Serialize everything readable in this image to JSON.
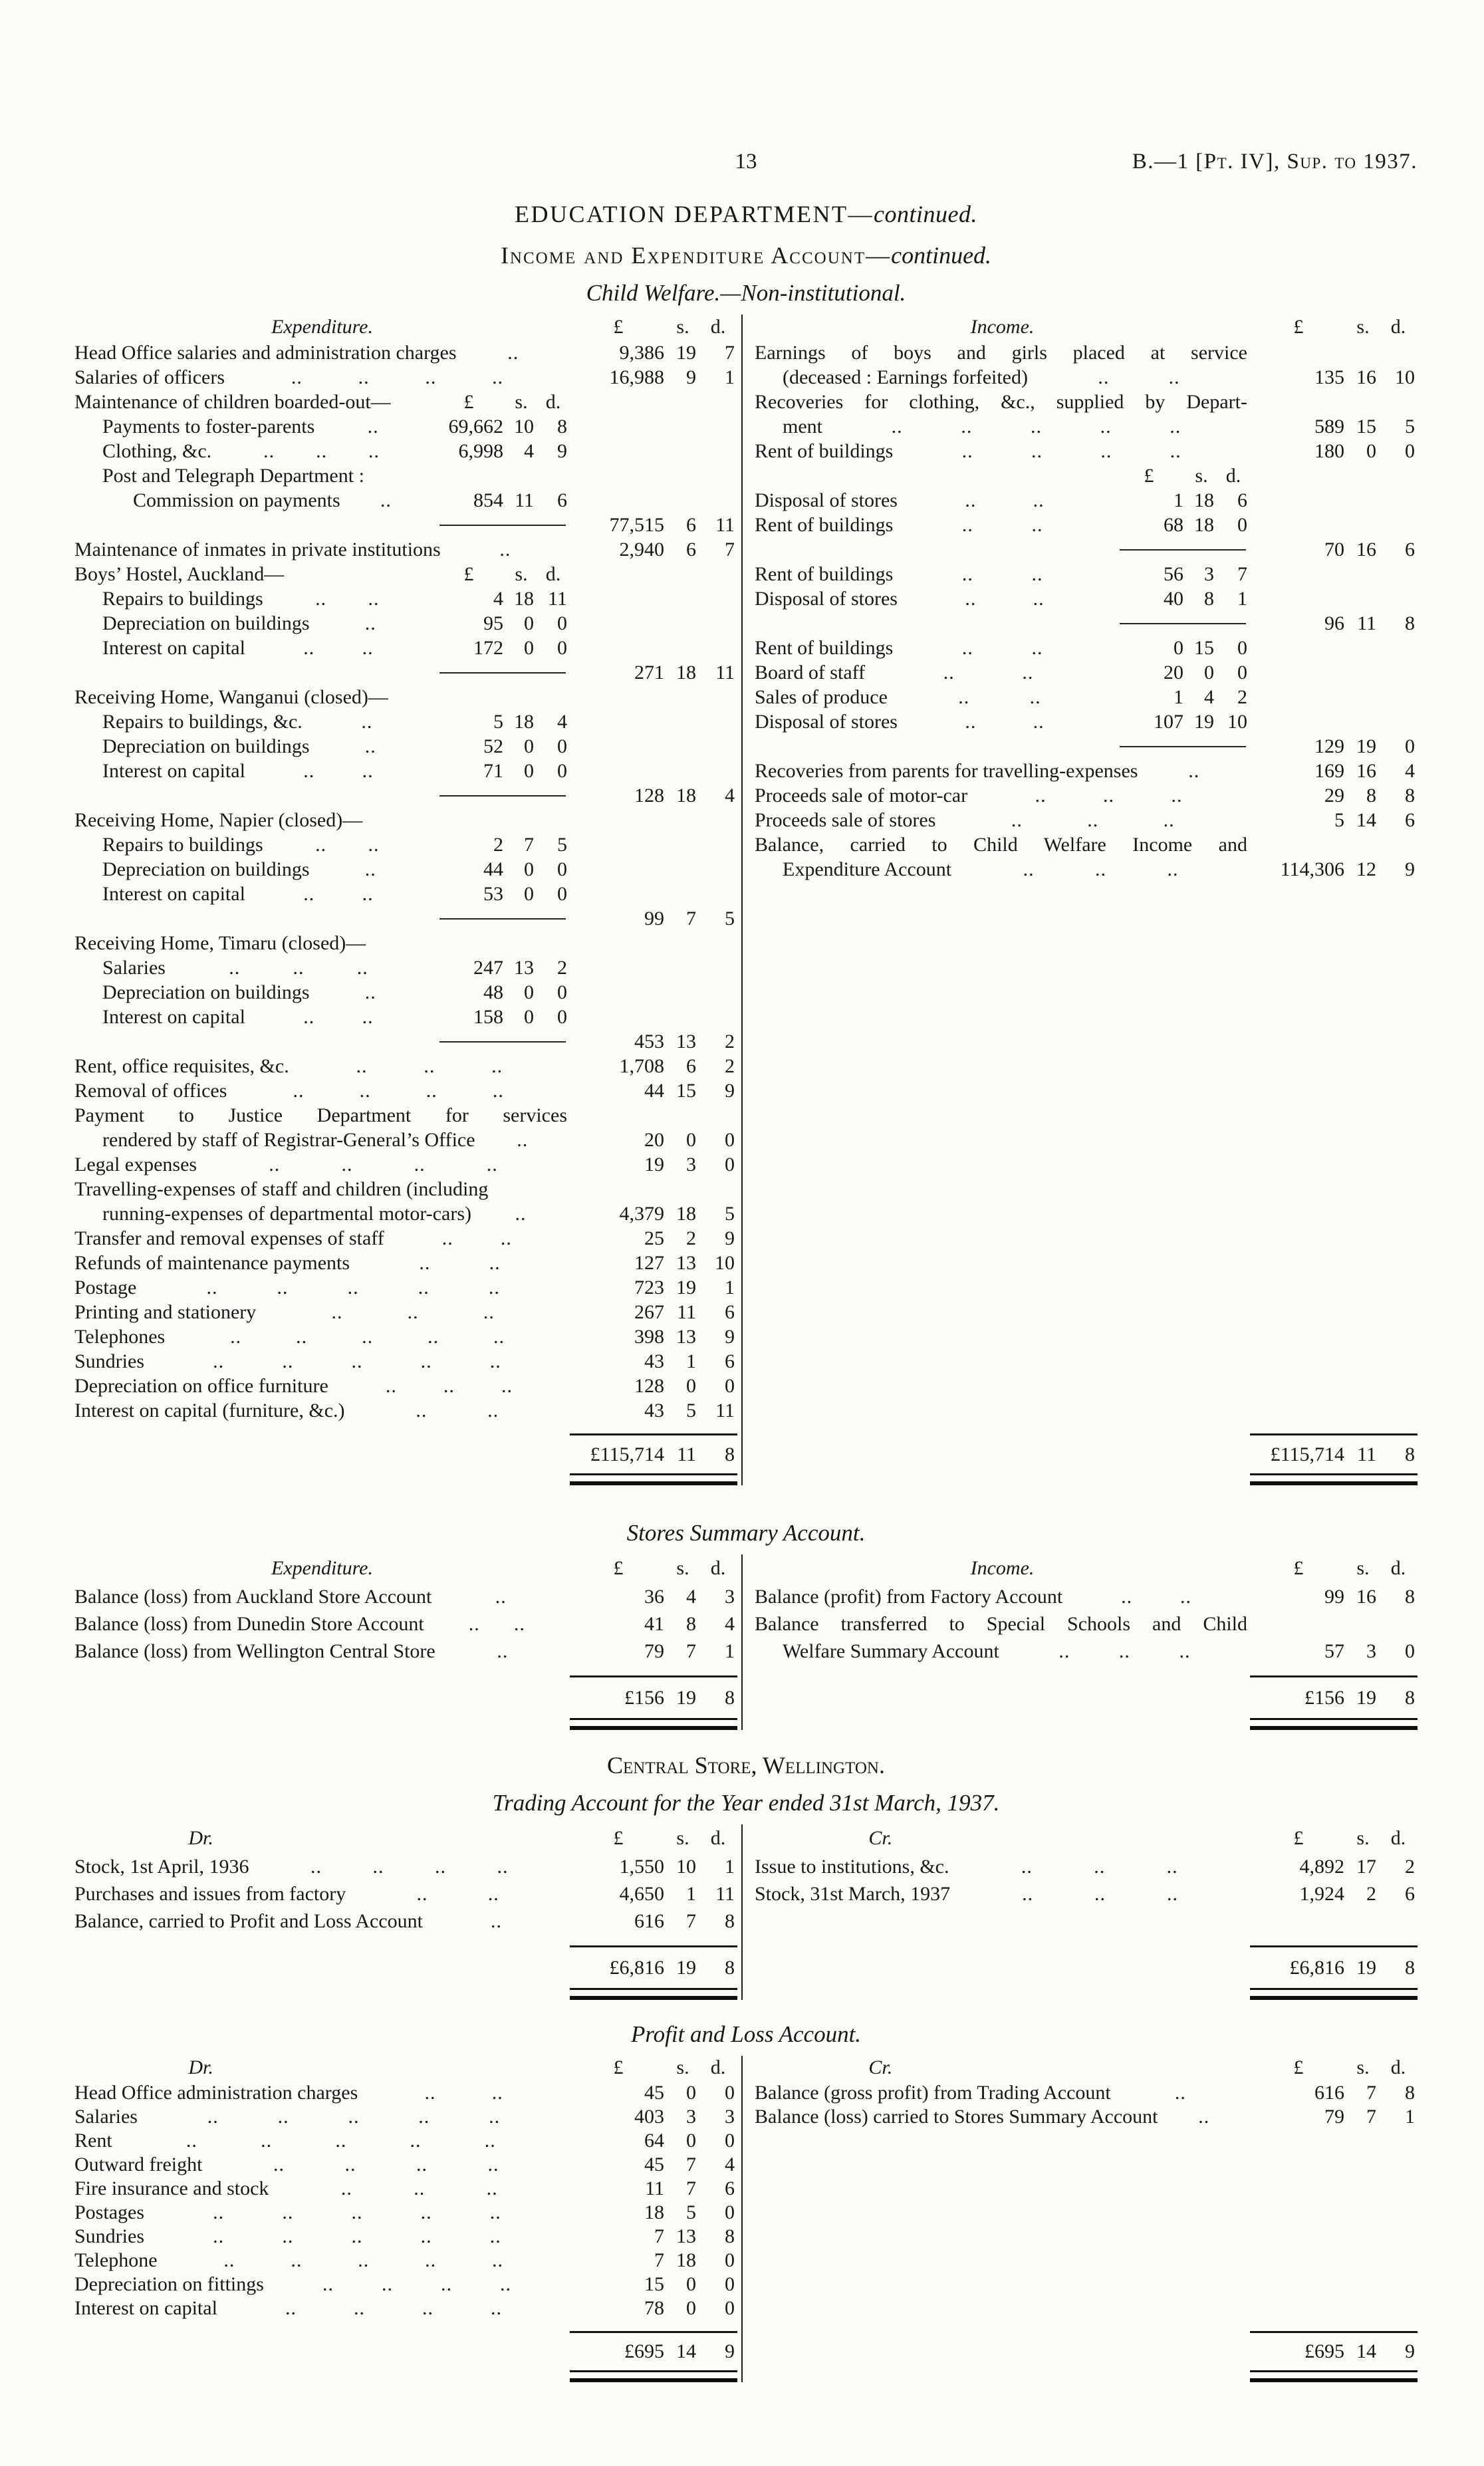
{
  "header": {
    "page_number": "13",
    "doc_ref": "B.—1 [Pt. IV], Sup. to 1937."
  },
  "titles": {
    "department": "EDUCATION DEPARTMENT—",
    "department_suffix": "continued.",
    "account": "Income and Expenditure Account—",
    "account_suffix": "continued.",
    "subtitle": "Child Welfare.—Non-institutional."
  },
  "money_head": {
    "pounds": "£",
    "shillings": "s.",
    "pence": "d."
  },
  "child_welfare": {
    "expenditure": {
      "heading": "Expenditure.",
      "rows": [
        {
          "label": "Head Office salaries and administration charges",
          "dots": 1,
          "col": "outer",
          "amt": [
            "9,386",
            "19",
            "7"
          ]
        },
        {
          "label": "Salaries of officers",
          "dots": 4,
          "col": "outer",
          "amt": [
            "16,988",
            "9",
            "1"
          ]
        },
        {
          "type": "subhead",
          "label": "Maintenance of children boarded-out—"
        },
        {
          "label": "Payments to foster-parents",
          "indent": 1,
          "dots": 1,
          "col": "inner",
          "amt": [
            "69,662",
            "10",
            "8"
          ]
        },
        {
          "label": "Clothing, &c.",
          "indent": 1,
          "dots": 3,
          "col": "inner",
          "amt": [
            "6,998",
            "4",
            "9"
          ]
        },
        {
          "type": "wrap",
          "label": "Post and Telegraph Department :",
          "indent": 1
        },
        {
          "label": "Commission on payments",
          "indent": 2,
          "dots": 1,
          "col": "inner",
          "amt": [
            "854",
            "11",
            "6"
          ]
        },
        {
          "type": "subtotal",
          "amt": [
            "77,515",
            "6",
            "11"
          ]
        },
        {
          "label": "Maintenance of inmates in private institutions",
          "dots": 1,
          "col": "outer",
          "amt": [
            "2,940",
            "6",
            "7"
          ]
        },
        {
          "type": "subhead",
          "label": "Boys’ Hostel, Auckland—"
        },
        {
          "label": "Repairs to buildings",
          "indent": 1,
          "dots": 2,
          "col": "inner",
          "amt": [
            "4",
            "18",
            "11"
          ]
        },
        {
          "label": "Depreciation on buildings",
          "indent": 1,
          "dots": 1,
          "col": "inner",
          "amt": [
            "95",
            "0",
            "0"
          ]
        },
        {
          "label": "Interest on capital",
          "indent": 1,
          "dots": 2,
          "col": "inner",
          "amt": [
            "172",
            "0",
            "0"
          ]
        },
        {
          "type": "subtotal",
          "amt": [
            "271",
            "18",
            "11"
          ]
        },
        {
          "type": "wrap",
          "label": "Receiving Home, Wanganui (closed)—"
        },
        {
          "label": "Repairs to buildings, &c.",
          "indent": 1,
          "dots": 1,
          "col": "inner",
          "amt": [
            "5",
            "18",
            "4"
          ]
        },
        {
          "label": "Depreciation on buildings",
          "indent": 1,
          "dots": 1,
          "col": "inner",
          "amt": [
            "52",
            "0",
            "0"
          ]
        },
        {
          "label": "Interest on capital",
          "indent": 1,
          "dots": 2,
          "col": "inner",
          "amt": [
            "71",
            "0",
            "0"
          ]
        },
        {
          "type": "subtotal",
          "amt": [
            "128",
            "18",
            "4"
          ]
        },
        {
          "type": "wrap",
          "label": "Receiving Home, Napier (closed)—"
        },
        {
          "label": "Repairs to buildings",
          "indent": 1,
          "dots": 2,
          "col": "inner",
          "amt": [
            "2",
            "7",
            "5"
          ]
        },
        {
          "label": "Depreciation on buildings",
          "indent": 1,
          "dots": 1,
          "col": "inner",
          "amt": [
            "44",
            "0",
            "0"
          ]
        },
        {
          "label": "Interest on capital",
          "indent": 1,
          "dots": 2,
          "col": "inner",
          "amt": [
            "53",
            "0",
            "0"
          ]
        },
        {
          "type": "subtotal",
          "amt": [
            "99",
            "7",
            "5"
          ]
        },
        {
          "type": "wrap",
          "label": "Receiving Home, Timaru (closed)—"
        },
        {
          "label": "Salaries",
          "indent": 1,
          "dots": 3,
          "col": "inner",
          "amt": [
            "247",
            "13",
            "2"
          ]
        },
        {
          "label": "Depreciation on buildings",
          "indent": 1,
          "dots": 1,
          "col": "inner",
          "amt": [
            "48",
            "0",
            "0"
          ]
        },
        {
          "label": "Interest on capital",
          "indent": 1,
          "dots": 2,
          "col": "inner",
          "amt": [
            "158",
            "0",
            "0"
          ]
        },
        {
          "type": "subtotal",
          "amt": [
            "453",
            "13",
            "2"
          ]
        },
        {
          "label": "Rent, office requisites, &c.",
          "dots": 3,
          "col": "outer",
          "amt": [
            "1,708",
            "6",
            "2"
          ]
        },
        {
          "label": "Removal of offices",
          "dots": 4,
          "col": "outer",
          "amt": [
            "44",
            "15",
            "9"
          ]
        },
        {
          "type": "wrap",
          "label": "Payment to Justice Department for services",
          "justify": true
        },
        {
          "label": "rendered by staff of Registrar-General’s Office",
          "indent": 1,
          "dots": 1,
          "col": "outer",
          "amt": [
            "20",
            "0",
            "0"
          ]
        },
        {
          "label": "Legal expenses",
          "dots": 4,
          "col": "outer",
          "amt": [
            "19",
            "3",
            "0"
          ]
        },
        {
          "type": "wrap",
          "label": "Travelling-expenses of staff and children (including"
        },
        {
          "label": "running-expenses of departmental motor-cars)",
          "indent": 1,
          "dots": 1,
          "col": "outer",
          "amt": [
            "4,379",
            "18",
            "5"
          ]
        },
        {
          "label": "Transfer and removal expenses of staff",
          "dots": 2,
          "col": "outer",
          "amt": [
            "25",
            "2",
            "9"
          ]
        },
        {
          "label": "Refunds of maintenance payments",
          "dots": 2,
          "col": "outer",
          "amt": [
            "127",
            "13",
            "10"
          ]
        },
        {
          "label": "Postage",
          "dots": 5,
          "col": "outer",
          "amt": [
            "723",
            "19",
            "1"
          ]
        },
        {
          "label": "Printing and stationery",
          "dots": 3,
          "col": "outer",
          "amt": [
            "267",
            "11",
            "6"
          ]
        },
        {
          "label": "Telephones",
          "dots": 5,
          "col": "outer",
          "amt": [
            "398",
            "13",
            "9"
          ]
        },
        {
          "label": "Sundries",
          "dots": 5,
          "col": "outer",
          "amt": [
            "43",
            "1",
            "6"
          ]
        },
        {
          "label": "Depreciation on office furniture",
          "dots": 3,
          "col": "outer",
          "amt": [
            "128",
            "0",
            "0"
          ]
        },
        {
          "label": "Interest on capital (furniture, &c.)",
          "dots": 2,
          "col": "outer",
          "amt": [
            "43",
            "5",
            "11"
          ]
        }
      ],
      "total": [
        "£115,714",
        "11",
        "8"
      ]
    },
    "income": {
      "heading": "Income.",
      "rows": [
        {
          "type": "wrap",
          "label": "Earnings of boys and girls placed at service",
          "justify": true
        },
        {
          "label": "(deceased : Earnings forfeited)",
          "indent": 1,
          "dots": 2,
          "col": "outer",
          "amt": [
            "135",
            "16",
            "10"
          ]
        },
        {
          "type": "wrap",
          "label": "Recoveries for clothing, &c., supplied by Depart-",
          "justify": true
        },
        {
          "label": "ment",
          "indent": 1,
          "dots": 5,
          "col": "outer",
          "amt": [
            "589",
            "15",
            "5"
          ]
        },
        {
          "label": "Rent of buildings",
          "dots": 4,
          "col": "outer",
          "amt": [
            "180",
            "0",
            "0"
          ]
        },
        {
          "type": "innerhead"
        },
        {
          "label": "Disposal of stores",
          "dots": 2,
          "col": "inner",
          "amt": [
            "1",
            "18",
            "6"
          ]
        },
        {
          "label": "Rent of buildings",
          "dots": 2,
          "col": "inner",
          "amt": [
            "68",
            "18",
            "0"
          ]
        },
        {
          "type": "subtotal",
          "amt": [
            "70",
            "16",
            "6"
          ]
        },
        {
          "label": "Rent of buildings",
          "dots": 2,
          "col": "inner",
          "amt": [
            "56",
            "3",
            "7"
          ]
        },
        {
          "label": "Disposal of stores",
          "dots": 2,
          "col": "inner",
          "amt": [
            "40",
            "8",
            "1"
          ]
        },
        {
          "type": "subtotal",
          "amt": [
            "96",
            "11",
            "8"
          ]
        },
        {
          "label": "Rent of buildings",
          "dots": 2,
          "col": "inner",
          "amt": [
            "0",
            "15",
            "0"
          ]
        },
        {
          "label": "Board of staff",
          "dots": 2,
          "col": "inner",
          "amt": [
            "20",
            "0",
            "0"
          ]
        },
        {
          "label": "Sales of produce",
          "dots": 2,
          "col": "inner",
          "amt": [
            "1",
            "4",
            "2"
          ]
        },
        {
          "label": "Disposal of stores",
          "dots": 2,
          "col": "inner",
          "amt": [
            "107",
            "19",
            "10"
          ]
        },
        {
          "type": "subtotal",
          "amt": [
            "129",
            "19",
            "0"
          ]
        },
        {
          "label": "Recoveries from parents for travelling-expenses",
          "dots": 1,
          "col": "outer",
          "amt": [
            "169",
            "16",
            "4"
          ]
        },
        {
          "label": "Proceeds sale of motor-car",
          "dots": 3,
          "col": "outer",
          "amt": [
            "29",
            "8",
            "8"
          ]
        },
        {
          "label": "Proceeds sale of stores",
          "dots": 3,
          "col": "outer",
          "amt": [
            "5",
            "14",
            "6"
          ]
        },
        {
          "type": "wrap",
          "label": "Balance, carried to Child Welfare Income and",
          "justify": true
        },
        {
          "label": "Expenditure Account",
          "indent": 1,
          "dots": 3,
          "col": "outer",
          "amt": [
            "114,306",
            "12",
            "9"
          ]
        }
      ],
      "total": [
        "£115,714",
        "11",
        "8"
      ]
    }
  },
  "stores_summary": {
    "title": "Stores Summary Account.",
    "expenditure": {
      "heading": "Expenditure.",
      "rows": [
        {
          "label": "Balance (loss) from Auckland Store Account",
          "dots": 1,
          "col": "outer",
          "amt": [
            "36",
            "4",
            "3"
          ]
        },
        {
          "label": "Balance (loss) from Dunedin Store Account",
          "dots": 2,
          "col": "outer",
          "amt": [
            "41",
            "8",
            "4"
          ]
        },
        {
          "label": "Balance (loss) from Wellington Central Store",
          "dots": 1,
          "col": "outer",
          "amt": [
            "79",
            "7",
            "1"
          ]
        }
      ],
      "total": [
        "£156",
        "19",
        "8"
      ]
    },
    "income": {
      "heading": "Income.",
      "rows": [
        {
          "label": "Balance (profit) from Factory Account",
          "dots": 2,
          "col": "outer",
          "amt": [
            "99",
            "16",
            "8"
          ]
        },
        {
          "type": "wrap",
          "label": "Balance transferred to Special Schools and Child",
          "justify": true
        },
        {
          "label": "Welfare Summary Account",
          "indent": 1,
          "dots": 3,
          "col": "outer",
          "amt": [
            "57",
            "3",
            "0"
          ]
        }
      ],
      "total": [
        "£156",
        "19",
        "8"
      ]
    }
  },
  "central_store": {
    "title": "Central Store, Wellington.",
    "subtitle": "Trading Account for the Year ended 31st March, 1937.",
    "dr": {
      "heading": "Dr.",
      "rows": [
        {
          "label": "Stock, 1st April, 1936",
          "dots": 4,
          "col": "outer",
          "amt": [
            "1,550",
            "10",
            "1"
          ]
        },
        {
          "label": "Purchases and issues from factory",
          "dots": 2,
          "col": "outer",
          "amt": [
            "4,650",
            "1",
            "11"
          ]
        },
        {
          "label": "Balance, carried to Profit and Loss Account",
          "dots": 1,
          "col": "outer",
          "amt": [
            "616",
            "7",
            "8"
          ]
        }
      ],
      "total": [
        "£6,816",
        "19",
        "8"
      ]
    },
    "cr": {
      "heading": "Cr.",
      "rows": [
        {
          "label": "Issue to institutions, &c.",
          "dots": 3,
          "col": "outer",
          "amt": [
            "4,892",
            "17",
            "2"
          ]
        },
        {
          "label": "Stock, 31st March, 1937",
          "dots": 3,
          "col": "outer",
          "amt": [
            "1,924",
            "2",
            "6"
          ]
        }
      ],
      "total": [
        "£6,816",
        "19",
        "8"
      ]
    }
  },
  "profit_loss": {
    "title": "Profit and Loss Account.",
    "dr": {
      "heading": "Dr.",
      "rows": [
        {
          "label": "Head Office administration charges",
          "dots": 2,
          "col": "outer",
          "amt": [
            "45",
            "0",
            "0"
          ]
        },
        {
          "label": "Salaries",
          "dots": 5,
          "col": "outer",
          "amt": [
            "403",
            "3",
            "3"
          ]
        },
        {
          "label": "Rent",
          "dots": 5,
          "col": "outer",
          "amt": [
            "64",
            "0",
            "0"
          ]
        },
        {
          "label": "Outward freight",
          "dots": 4,
          "col": "outer",
          "amt": [
            "45",
            "7",
            "4"
          ]
        },
        {
          "label": "Fire insurance and stock",
          "dots": 3,
          "col": "outer",
          "amt": [
            "11",
            "7",
            "6"
          ]
        },
        {
          "label": "Postages",
          "dots": 5,
          "col": "outer",
          "amt": [
            "18",
            "5",
            "0"
          ]
        },
        {
          "label": "Sundries",
          "dots": 5,
          "col": "outer",
          "amt": [
            "7",
            "13",
            "8"
          ]
        },
        {
          "label": "Telephone",
          "dots": 5,
          "col": "outer",
          "amt": [
            "7",
            "18",
            "0"
          ]
        },
        {
          "label": "Depreciation on fittings",
          "dots": 4,
          "col": "outer",
          "amt": [
            "15",
            "0",
            "0"
          ]
        },
        {
          "label": "Interest on capital",
          "dots": 4,
          "col": "outer",
          "amt": [
            "78",
            "0",
            "0"
          ]
        }
      ],
      "total": [
        "£695",
        "14",
        "9"
      ]
    },
    "cr": {
      "heading": "Cr.",
      "rows": [
        {
          "label": "Balance (gross profit) from Trading Account",
          "dots": 1,
          "col": "outer",
          "amt": [
            "616",
            "7",
            "8"
          ]
        },
        {
          "label": "Balance (loss) carried to Stores Summary Account",
          "dots": 1,
          "col": "outer",
          "amt": [
            "79",
            "7",
            "1"
          ]
        }
      ],
      "total": [
        "£695",
        "14",
        "9"
      ]
    }
  }
}
